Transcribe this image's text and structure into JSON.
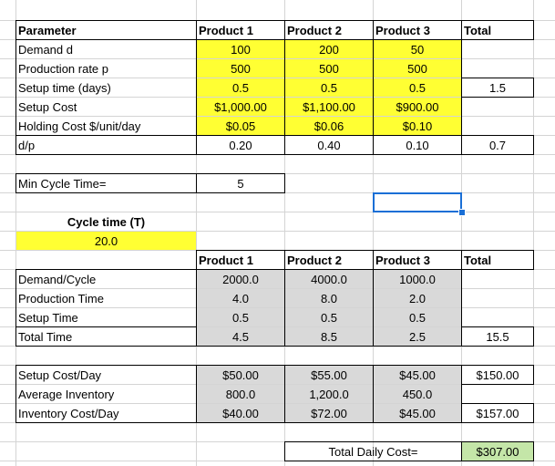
{
  "params": {
    "headers": [
      "Parameter",
      "Product 1",
      "Product 2",
      "Product 3",
      "Total"
    ],
    "rows": [
      {
        "label": "Demand d",
        "values": [
          "100",
          "200",
          "50"
        ],
        "total": ""
      },
      {
        "label": "Production rate p",
        "values": [
          "500",
          "500",
          "500"
        ],
        "total": ""
      },
      {
        "label": "Setup time (days)",
        "values": [
          "0.5",
          "0.5",
          "0.5"
        ],
        "total": "1.5"
      },
      {
        "label": "Setup Cost",
        "values": [
          "$1,000.00",
          "$1,100.00",
          "$900.00"
        ],
        "total": ""
      },
      {
        "label": "Holding Cost $/unit/day",
        "values": [
          "$0.05",
          "$0.06",
          "$0.10"
        ],
        "total": ""
      },
      {
        "label": "d/p",
        "values": [
          "0.20",
          "0.40",
          "0.10"
        ],
        "total": "0.7"
      }
    ]
  },
  "min_cycle": {
    "label": "Min Cycle Time=",
    "value": "5"
  },
  "cycle_time": {
    "label": "Cycle time (T)",
    "value": "20.0"
  },
  "calc": {
    "headers": [
      "Product 1",
      "Product 2",
      "Product 3",
      "Total"
    ],
    "rows": [
      {
        "label": "Demand/Cycle",
        "values": [
          "2000.0",
          "4000.0",
          "1000.0"
        ],
        "total": ""
      },
      {
        "label": "Production Time",
        "values": [
          "4.0",
          "8.0",
          "2.0"
        ],
        "total": ""
      },
      {
        "label": "Setup Time",
        "values": [
          "0.5",
          "0.5",
          "0.5"
        ],
        "total": ""
      },
      {
        "label": "Total Time",
        "values": [
          "4.5",
          "8.5",
          "2.5"
        ],
        "total": "15.5"
      }
    ]
  },
  "costs": {
    "rows": [
      {
        "label": "Setup Cost/Day",
        "values": [
          "$50.00",
          "$55.00",
          "$45.00"
        ],
        "total": "$150.00"
      },
      {
        "label": "Average Inventory",
        "values": [
          "800.0",
          "1,200.0",
          "450.0"
        ],
        "total": ""
      },
      {
        "label": "Inventory Cost/Day",
        "values": [
          "$40.00",
          "$72.00",
          "$45.00"
        ],
        "total": "$157.00"
      }
    ]
  },
  "total_daily": {
    "label": "Total Daily Cost=",
    "value": "$307.00"
  },
  "colors": {
    "input_fill": "#ffff33",
    "calc_fill": "#d9d9d9",
    "result_fill": "#c4e6a8",
    "selection": "#1a6fd6"
  }
}
